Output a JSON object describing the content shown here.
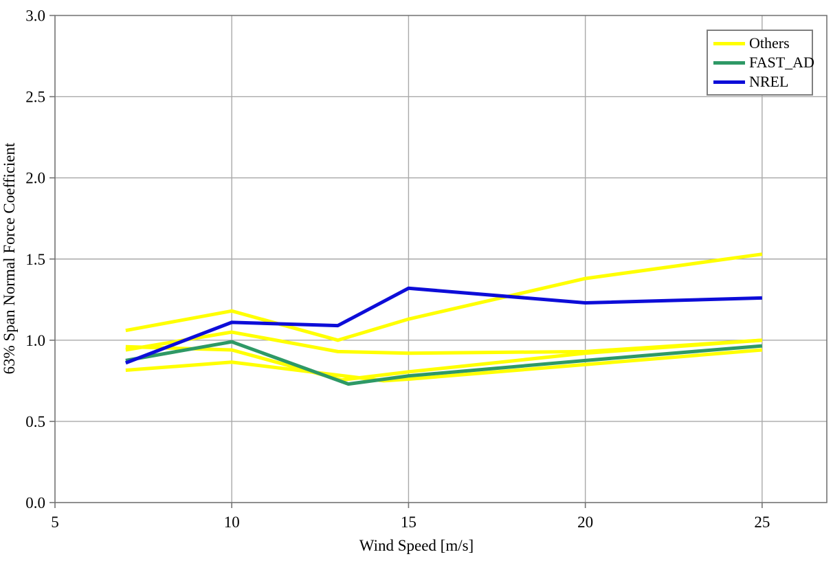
{
  "figure": {
    "background": "#ffffff",
    "plot_border_color": "#737373",
    "gridline_color": "#a9a9a9"
  },
  "legend": {
    "position": "top-right",
    "entries": [
      {
        "label": "Others",
        "color": "#ffff00"
      },
      {
        "label": "FAST_AD",
        "color": "#2e9966"
      },
      {
        "label": "NREL",
        "color": "#0d0dd8"
      }
    ]
  },
  "chart_data": {
    "type": "line",
    "title": "",
    "xlabel": "Wind Speed [m/s]",
    "ylabel": "63% Span Normal Force Coefficient",
    "xlim": [
      5,
      26.83
    ],
    "ylim": [
      0.0,
      3.0
    ],
    "xticks": [
      "5",
      "10",
      "15",
      "20",
      "25"
    ],
    "xtick_values": [
      5,
      10,
      15,
      20,
      25
    ],
    "yticks": [
      "0.0",
      "0.5",
      "1.0",
      "1.5",
      "2.0",
      "2.5",
      "3.0"
    ],
    "ytick_values": [
      0.0,
      0.5,
      1.0,
      1.5,
      2.0,
      2.5,
      3.0
    ],
    "grid": true,
    "legend_position": "top-right",
    "line_width": 5,
    "series": [
      {
        "name": "Others-1",
        "legend": "Others",
        "color": "#ffff00",
        "x": [
          7,
          10,
          13,
          15,
          20,
          25
        ],
        "y": [
          1.06,
          1.18,
          1.0,
          1.13,
          1.38,
          1.53
        ]
      },
      {
        "name": "Others-2",
        "legend": "Others",
        "color": "#ffff00",
        "x": [
          7,
          10,
          13,
          15,
          20,
          25
        ],
        "y": [
          0.94,
          1.05,
          0.93,
          0.92,
          0.93,
          1.0
        ]
      },
      {
        "name": "Others-3",
        "legend": "Others",
        "color": "#ffff00",
        "x": [
          7,
          10,
          13.1,
          15,
          20,
          25
        ],
        "y": [
          0.96,
          0.94,
          0.755,
          0.805,
          0.92,
          1.0
        ]
      },
      {
        "name": "Others-4",
        "legend": "Others",
        "color": "#ffff00",
        "x": [
          7,
          10,
          14.3,
          15,
          20,
          25
        ],
        "y": [
          0.815,
          0.865,
          0.75,
          0.76,
          0.85,
          0.94
        ]
      },
      {
        "name": "FAST_AD",
        "legend": "FAST_AD",
        "color": "#2e9966",
        "x": [
          7,
          10,
          13.3,
          15,
          20,
          25
        ],
        "y": [
          0.875,
          0.99,
          0.73,
          0.78,
          0.875,
          0.965
        ]
      },
      {
        "name": "NREL",
        "legend": "NREL",
        "color": "#0d0dd8",
        "x": [
          7,
          10,
          13,
          15,
          20,
          25
        ],
        "y": [
          0.86,
          1.11,
          1.09,
          1.32,
          1.23,
          1.26
        ]
      }
    ]
  }
}
